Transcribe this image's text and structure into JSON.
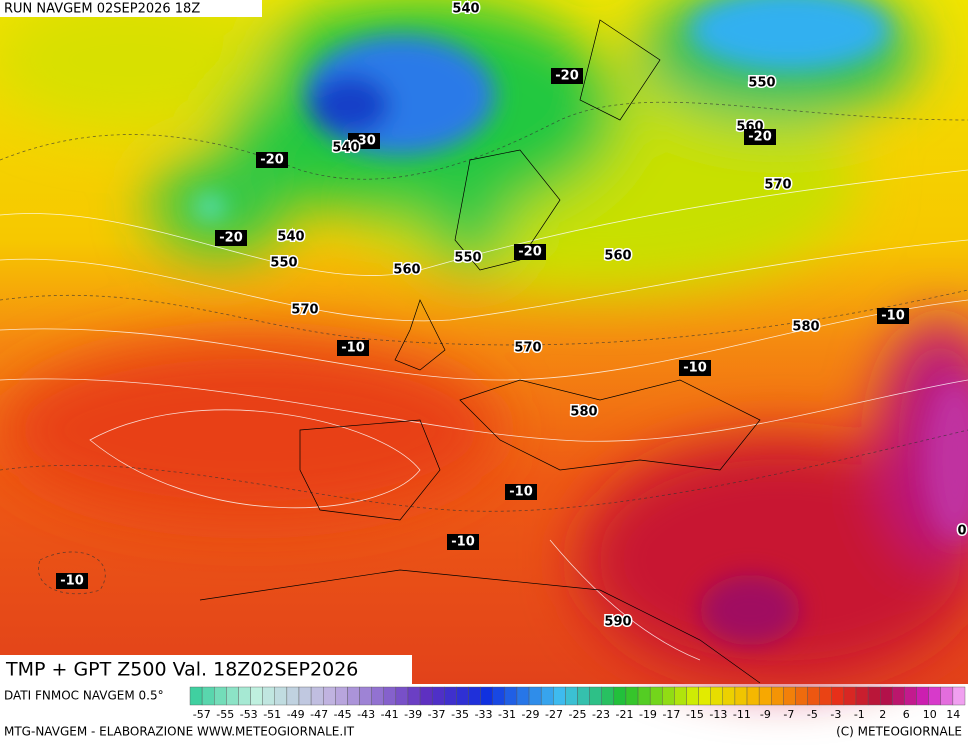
{
  "header": {
    "run": "RUN NAVGEM 02SEP2026 18Z"
  },
  "map": {
    "contour_labels": [
      "540",
      "-20",
      "550",
      "560",
      "-20",
      "-30",
      "540",
      "-20",
      "570",
      "-20",
      "540",
      "550",
      "550",
      "-20",
      "560",
      "560",
      "570",
      "-10",
      "580",
      "-10",
      "570",
      "-10",
      "580",
      "-10",
      "0",
      "-10",
      "-10",
      "590"
    ]
  },
  "title": "TMP + GPT Z500 Val. 18Z02SEP2026",
  "legend": {
    "source": "DATI FNMOC NAVGEM 0.5°",
    "scale": [
      "-57",
      "-55",
      "-53",
      "-51",
      "-49",
      "-47",
      "-45",
      "-43",
      "-41",
      "-39",
      "-37",
      "-35",
      "-33",
      "-31",
      "-29",
      "-27",
      "-25",
      "-23",
      "-21",
      "-19",
      "-17",
      "-15",
      "-13",
      "-11",
      "-9",
      "-7",
      "-5",
      "-3",
      "-1",
      "2",
      "6",
      "10",
      "14"
    ]
  },
  "footer": {
    "left": "MTG-NAVGEM - ELABORAZIONE WWW.METEOGIORNALE.IT",
    "right": "(C) METEOGIORNALE"
  }
}
